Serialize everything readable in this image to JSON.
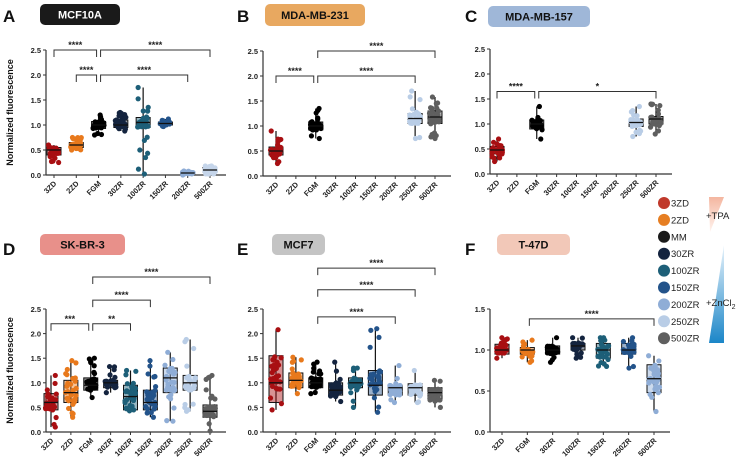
{
  "legend": {
    "items": [
      {
        "label": "3ZD",
        "color": "#c0392b"
      },
      {
        "label": "2ZD",
        "color": "#e67e22"
      },
      {
        "label": "MM",
        "color": "#1a1a1a"
      },
      {
        "label": "30ZR",
        "color": "#14243f"
      },
      {
        "label": "100ZR",
        "color": "#1d5f78"
      },
      {
        "label": "150ZR",
        "color": "#23538a"
      },
      {
        "label": "200ZR",
        "color": "#8fadd6"
      },
      {
        "label": "250ZR",
        "color": "#b9cde6"
      },
      {
        "label": "500ZR",
        "color": "#5f5f5f"
      }
    ],
    "tpa_label": "+TPA",
    "zncl2_label": "+ZnCl",
    "zncl2_subscript": "2"
  },
  "palette": {
    "3ZD": "#a80f12",
    "2ZD": "#e8791c",
    "FGM": "#000000",
    "30ZR": "#14243f",
    "100ZR": "#1d5f78",
    "150ZR": "#23538a",
    "200ZR": "#8fadd6",
    "250ZR": "#b9cde6",
    "500ZR": "#5f5f5f"
  },
  "chart_data": [
    {
      "panel": "A",
      "title": "MCF10A",
      "title_bg": "#1a1a1a",
      "title_color": "#ffffff",
      "type": "box-scatter",
      "ylabel": "Normalized fluorescence",
      "ylim": [
        0,
        2.5
      ],
      "yticks": [
        "0.0",
        "0.5",
        "1.0",
        "1.5",
        "2.0",
        "2.5"
      ],
      "categories": [
        "3ZD",
        "2ZD",
        "FGM",
        "30ZR",
        "100ZR",
        "150ZR",
        "200ZR",
        "500ZR"
      ],
      "stats": [
        [
          0.5,
          0.4,
          0.55,
          0.25,
          0.6
        ],
        [
          0.6,
          0.55,
          0.65,
          0.5,
          0.75
        ],
        [
          1.0,
          0.93,
          1.07,
          0.8,
          1.2
        ],
        [
          1.0,
          0.95,
          1.1,
          0.88,
          1.25
        ],
        [
          1.05,
          0.95,
          1.15,
          0.02,
          1.75
        ],
        [
          1.03,
          1.0,
          1.06,
          0.97,
          1.12
        ],
        [
          0.04,
          0.02,
          0.06,
          0.0,
          0.08
        ],
        [
          0.1,
          0.05,
          0.15,
          0.02,
          0.18
        ]
      ],
      "color_override": {
        "500ZR": "#c5d5ea"
      },
      "significance": [
        {
          "from": "3ZD",
          "to": "FGM",
          "level": 2.5,
          "label": "****"
        },
        {
          "from": "2ZD",
          "to": "FGM",
          "level": 2.0,
          "label": "****"
        },
        {
          "from": "FGM",
          "to": "500ZR",
          "level": 2.5,
          "label": "****"
        },
        {
          "from": "FGM",
          "to": "200ZR",
          "level": 2.0,
          "label": "****"
        }
      ]
    },
    {
      "panel": "B",
      "title": "MDA-MB-231",
      "title_bg": "#e8a860",
      "title_color": "#111111",
      "type": "box-scatter",
      "ylabel": "",
      "ylim": [
        0,
        2.5
      ],
      "yticks": [
        "0.0",
        "0.5",
        "1.0",
        "1.5",
        "2.0",
        "2.5"
      ],
      "categories": [
        "3ZD",
        "2ZD",
        "FGM",
        "30ZR",
        "100ZR",
        "150ZR",
        "200ZR",
        "250ZR",
        "500ZR"
      ],
      "stats": [
        [
          0.5,
          0.42,
          0.58,
          0.25,
          0.9
        ],
        null,
        [
          1.0,
          0.92,
          1.08,
          0.75,
          1.35
        ],
        null,
        null,
        null,
        null,
        [
          1.15,
          1.05,
          1.25,
          0.75,
          1.7
        ],
        [
          1.18,
          1.05,
          1.3,
          0.75,
          1.58
        ]
      ],
      "significance": [
        {
          "from": "3ZD",
          "to": "FGM",
          "level": 2.0,
          "label": "****"
        },
        {
          "from": "FGM",
          "to": "250ZR",
          "level": 2.0,
          "label": "****"
        },
        {
          "from": "FGM",
          "to": "500ZR",
          "level": 2.5,
          "label": "****"
        }
      ]
    },
    {
      "panel": "C",
      "title": "MDA-MB-157",
      "title_bg": "#9fb7d8",
      "title_color": "#111111",
      "type": "box-scatter",
      "ylabel": "",
      "ylim": [
        0,
        2.5
      ],
      "yticks": [
        "0.0",
        "0.5",
        "1.0",
        "1.5",
        "2.0",
        "2.5"
      ],
      "categories": [
        "3ZD",
        "2ZD",
        "FGM",
        "30ZR",
        "100ZR",
        "150ZR",
        "200ZR",
        "250ZR",
        "500ZR"
      ],
      "stats": [
        [
          0.48,
          0.4,
          0.55,
          0.25,
          0.7
        ],
        null,
        [
          1.0,
          0.9,
          1.08,
          0.7,
          1.35
        ],
        null,
        null,
        null,
        null,
        [
          1.03,
          0.95,
          1.1,
          0.75,
          1.35
        ],
        [
          1.1,
          1.0,
          1.15,
          0.8,
          1.4
        ]
      ],
      "significance": [
        {
          "from": "3ZD",
          "to": "FGM",
          "level": 1.65,
          "label": "****"
        },
        {
          "from": "FGM",
          "to": "500ZR",
          "level": 1.65,
          "label": "*"
        }
      ]
    },
    {
      "panel": "D",
      "title": "SK-BR-3",
      "title_bg": "#e8908a",
      "title_color": "#111111",
      "type": "box-scatter",
      "ylabel": "Normalized fluorescence",
      "ylim": [
        0,
        2.5
      ],
      "yticks": [
        "0.0",
        "0.5",
        "1.0",
        "1.5",
        "2.0",
        "2.5"
      ],
      "categories": [
        "3ZD",
        "2ZD",
        "FGM",
        "30ZR",
        "100ZR",
        "150ZR",
        "200ZR",
        "250ZR",
        "500ZR"
      ],
      "stats": [
        [
          0.6,
          0.45,
          0.78,
          0.1,
          1.15
        ],
        [
          0.8,
          0.6,
          1.05,
          0.3,
          1.45
        ],
        [
          0.95,
          0.85,
          1.1,
          0.7,
          1.5
        ],
        [
          1.0,
          0.9,
          1.05,
          0.8,
          1.33
        ],
        [
          0.72,
          0.45,
          0.95,
          0.43,
          1.25
        ],
        [
          0.6,
          0.45,
          0.85,
          0.3,
          1.45
        ],
        [
          1.1,
          0.8,
          1.3,
          0.22,
          1.62
        ],
        [
          1.0,
          0.85,
          1.15,
          0.42,
          1.88
        ],
        [
          0.42,
          0.3,
          0.55,
          0.02,
          1.15
        ]
      ],
      "significance": [
        {
          "from": "3ZD",
          "to": "FGM",
          "level": 2.2,
          "label": "***"
        },
        {
          "from": "FGM",
          "to": "100ZR",
          "level": 2.2,
          "label": "**"
        },
        {
          "from": "FGM",
          "to": "150ZR",
          "level": 2.68,
          "label": "****"
        },
        {
          "from": "FGM",
          "to": "500ZR",
          "level": 3.15,
          "label": "****"
        }
      ]
    },
    {
      "panel": "E",
      "title": "MCF7",
      "title_bg": "#c4c4c4",
      "title_color": "#111111",
      "type": "box-scatter",
      "ylabel": "",
      "ylim": [
        0,
        2.5
      ],
      "yticks": [
        "0.0",
        "0.5",
        "1.0",
        "1.5",
        "2.0",
        "2.5"
      ],
      "categories": [
        "3ZD",
        "2ZD",
        "FGM",
        "30ZR",
        "100ZR",
        "150ZR",
        "200ZR",
        "250ZR",
        "500ZR"
      ],
      "stats": [
        [
          1.0,
          0.6,
          1.55,
          0.45,
          2.08
        ],
        [
          1.05,
          0.9,
          1.2,
          0.78,
          1.52
        ],
        [
          1.0,
          0.9,
          1.1,
          0.78,
          1.42
        ],
        [
          0.85,
          0.75,
          1.0,
          0.62,
          1.42
        ],
        [
          1.0,
          0.9,
          1.1,
          0.5,
          1.3
        ],
        [
          0.95,
          0.75,
          1.25,
          0.4,
          2.1
        ],
        [
          0.9,
          0.75,
          0.95,
          0.6,
          1.35
        ],
        [
          0.9,
          0.75,
          0.98,
          0.6,
          1.25
        ],
        [
          0.8,
          0.65,
          0.9,
          0.5,
          1.05
        ]
      ],
      "significance": [
        {
          "from": "FGM",
          "to": "200ZR",
          "level": 2.34,
          "label": "****"
        },
        {
          "from": "FGM",
          "to": "250ZR",
          "level": 2.89,
          "label": "****"
        },
        {
          "from": "FGM",
          "to": "500ZR",
          "level": 3.33,
          "label": "****"
        }
      ]
    },
    {
      "panel": "F",
      "title": "T-47D",
      "title_bg": "#f2c8b8",
      "title_color": "#111111",
      "type": "box-scatter",
      "ylabel": "",
      "ylim": [
        0,
        1.5
      ],
      "yticks": [
        "0.0",
        "0.5",
        "1.0",
        "1.5"
      ],
      "categories": [
        "3ZD",
        "FGM",
        "30ZR",
        "100ZR",
        "150ZR",
        "250ZR",
        "500ZR"
      ],
      "stats": [
        [
          1.0,
          0.95,
          1.07,
          0.9,
          1.15
        ],
        [
          1.0,
          0.95,
          1.03,
          0.85,
          1.12
        ],
        [
          1.0,
          0.95,
          1.05,
          0.85,
          1.15
        ],
        [
          1.05,
          1.0,
          1.08,
          0.9,
          1.15
        ],
        [
          1.0,
          0.9,
          1.08,
          0.8,
          1.15
        ],
        [
          1.0,
          0.95,
          1.08,
          0.78,
          1.15
        ],
        [
          0.65,
          0.48,
          0.82,
          0.25,
          0.93
        ]
      ],
      "color_override": {
        "FGM": "#e8791c",
        "30ZR": "#000000",
        "100ZR": "#14243f",
        "150ZR": "#1d5f78",
        "250ZR": "#23538a",
        "500ZR": "#8fadd6"
      },
      "significance": [
        {
          "from": "FGM",
          "to": "500ZR",
          "level": 1.38,
          "label": "****"
        }
      ]
    }
  ]
}
